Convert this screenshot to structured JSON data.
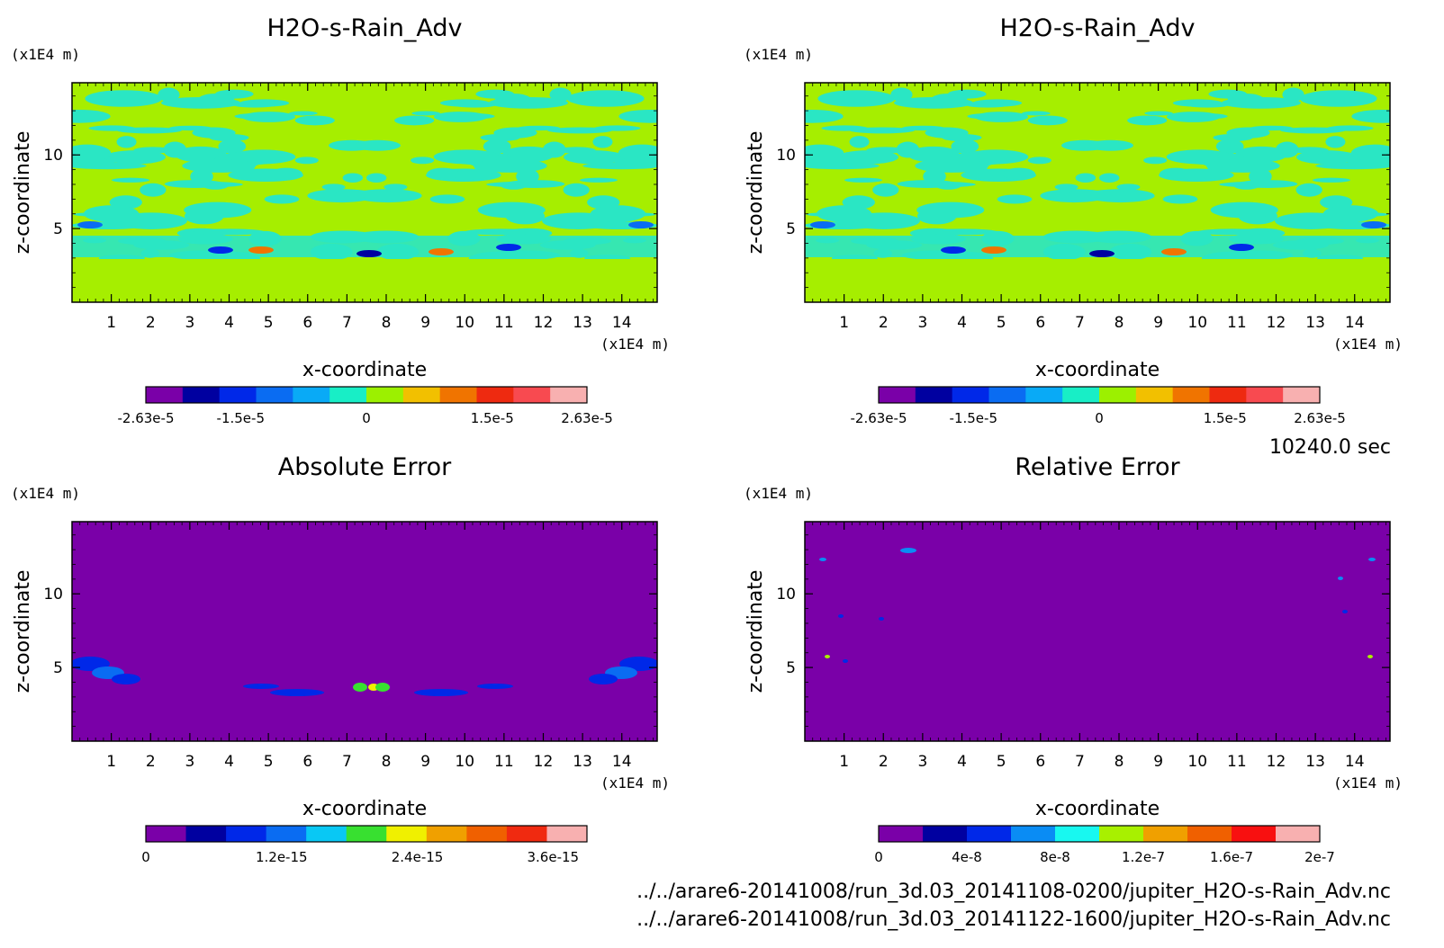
{
  "time_label": "10240.0 sec",
  "files": [
    "../../arare6-20141008/run_3d.03_20141108-0200/jupiter_H2O-s-Rain_Adv.nc",
    "../../arare6-20141008/run_3d.03_20141122-1600/jupiter_H2O-s-Rain_Adv.nc"
  ],
  "colors": {
    "field_bg": "#a6ee00",
    "field_fg": "#2ae6c4",
    "error_bg": "#7a00a8",
    "field_palette": [
      "#7a00a8",
      "#0000a0",
      "#0028e8",
      "#0a6cf2",
      "#09aaf6",
      "#18eec6",
      "#9cf000",
      "#f2c000",
      "#f07400",
      "#ee2a10",
      "#f84a50",
      "#f8b0b0"
    ],
    "abs_palette": [
      "#7a00a8",
      "#0000a0",
      "#0028e8",
      "#0a6cf2",
      "#09c8f4",
      "#38e030",
      "#f0f000",
      "#f0a000",
      "#f06000",
      "#f02a10",
      "#f8b0b0"
    ],
    "rel_palette": [
      "#7a00a8",
      "#0000a0",
      "#0028e8",
      "#0a8cf4",
      "#18f8f0",
      "#a8f000",
      "#f0a000",
      "#f06000",
      "#f81010",
      "#f8b0b0"
    ]
  },
  "chart_data": [
    {
      "type": "heatmap",
      "title": "H2O-s-Rain_Adv",
      "xlabel": "x-coordinate",
      "ylabel": "z-coordinate",
      "x_unit": "(x1E4 m)",
      "y_unit": "(x1E4 m)",
      "xlim": [
        0,
        14.9
      ],
      "ylim": [
        0,
        14.9
      ],
      "xticks": [
        "1",
        "2",
        "3",
        "4",
        "5",
        "6",
        "7",
        "8",
        "9",
        "10",
        "11",
        "12",
        "13",
        "14"
      ],
      "yticks": [
        "5",
        "10"
      ],
      "colorbar_labels": [
        "-2.63e-5",
        "-1.5e-5",
        "0",
        "1.5e-5",
        "2.63e-5"
      ],
      "colorbar_range": [
        -2.63e-05,
        2.63e-05
      ]
    },
    {
      "type": "heatmap",
      "title": "H2O-s-Rain_Adv",
      "xlabel": "x-coordinate",
      "ylabel": "z-coordinate",
      "x_unit": "(x1E4 m)",
      "y_unit": "(x1E4 m)",
      "xlim": [
        0,
        14.9
      ],
      "ylim": [
        0,
        14.9
      ],
      "xticks": [
        "1",
        "2",
        "3",
        "4",
        "5",
        "6",
        "7",
        "8",
        "9",
        "10",
        "11",
        "12",
        "13",
        "14"
      ],
      "yticks": [
        "5",
        "10"
      ],
      "colorbar_labels": [
        "-2.63e-5",
        "-1.5e-5",
        "0",
        "1.5e-5",
        "2.63e-5"
      ],
      "colorbar_range": [
        -2.63e-05,
        2.63e-05
      ]
    },
    {
      "type": "heatmap",
      "title": "Absolute Error",
      "xlabel": "x-coordinate",
      "ylabel": "z-coordinate",
      "x_unit": "(x1E4 m)",
      "y_unit": "(x1E4 m)",
      "xlim": [
        0,
        14.9
      ],
      "ylim": [
        0,
        14.9
      ],
      "xticks": [
        "1",
        "2",
        "3",
        "4",
        "5",
        "6",
        "7",
        "8",
        "9",
        "10",
        "11",
        "12",
        "13",
        "14"
      ],
      "yticks": [
        "5",
        "10"
      ],
      "colorbar_labels": [
        "0",
        "1.2e-15",
        "2.4e-15",
        "3.6e-15"
      ],
      "colorbar_range": [
        0,
        3.9e-15
      ]
    },
    {
      "type": "heatmap",
      "title": "Relative Error",
      "xlabel": "x-coordinate",
      "ylabel": "z-coordinate",
      "x_unit": "(x1E4 m)",
      "y_unit": "(x1E4 m)",
      "xlim": [
        0,
        14.9
      ],
      "ylim": [
        0,
        14.9
      ],
      "xticks": [
        "1",
        "2",
        "3",
        "4",
        "5",
        "6",
        "7",
        "8",
        "9",
        "10",
        "11",
        "12",
        "13",
        "14"
      ],
      "yticks": [
        "5",
        "10"
      ],
      "colorbar_labels": [
        "0",
        "4e-8",
        "8e-8",
        "1.2e-7",
        "1.6e-7",
        "2e-7"
      ],
      "colorbar_range": [
        0,
        2e-07
      ]
    }
  ]
}
